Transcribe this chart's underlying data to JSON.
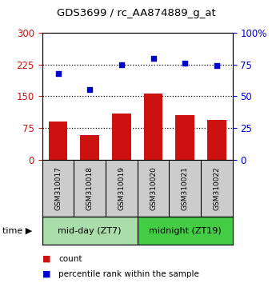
{
  "title": "GDS3699 / rc_AA874889_g_at",
  "samples": [
    "GSM310017",
    "GSM310018",
    "GSM310019",
    "GSM310020",
    "GSM310021",
    "GSM310022"
  ],
  "counts": [
    90,
    58,
    110,
    157,
    105,
    95
  ],
  "percentiles": [
    68,
    55,
    75,
    80,
    76,
    74
  ],
  "bar_color": "#cc1111",
  "dot_color": "#0000cc",
  "groups": [
    {
      "label": "mid-day (ZT7)",
      "color": "#aaddaa"
    },
    {
      "label": "midnight (ZT19)",
      "color": "#44cc44"
    }
  ],
  "left_ylim": [
    0,
    300
  ],
  "right_ylim": [
    0,
    100
  ],
  "left_yticks": [
    0,
    75,
    150,
    225,
    300
  ],
  "right_yticks": [
    0,
    25,
    50,
    75,
    100
  ],
  "right_yticklabels": [
    "0",
    "25",
    "50",
    "75",
    "100%"
  ],
  "left_color": "#cc1111",
  "right_color": "#0000cc",
  "hlines": [
    75,
    150,
    225
  ],
  "legend_count_label": "count",
  "legend_pct_label": "percentile rank within the sample",
  "background_color": "#ffffff",
  "xticklabel_bg": "#cccccc"
}
